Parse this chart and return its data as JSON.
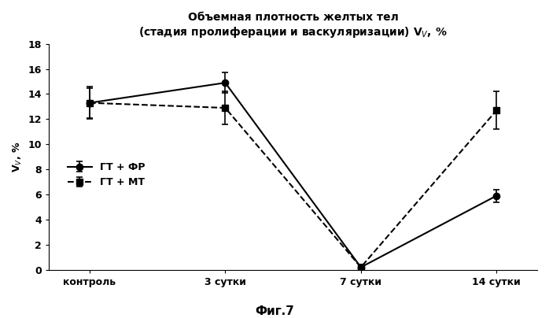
{
  "title_line1": "Объемная плотность желтых тел",
  "title_line2": "(стадия пролиферации и васкуляризации) V$_V$, %",
  "xlabel_categories": [
    "контроль",
    "3 сутки",
    "7 сутки",
    "14 сутки"
  ],
  "ylabel": "V$_V$, %",
  "figcaption": "Фиг.7",
  "series": [
    {
      "label": "ГТ + ФР",
      "values": [
        13.3,
        14.9,
        0.2,
        5.9
      ],
      "yerr": [
        1.3,
        0.8,
        0.2,
        0.5
      ],
      "color": "#000000",
      "linestyle": "-",
      "marker": "o",
      "markersize": 6,
      "linewidth": 1.5
    },
    {
      "label": "ГТ + МТ",
      "values": [
        13.3,
        12.9,
        0.2,
        12.7
      ],
      "yerr": [
        1.2,
        1.3,
        0.2,
        1.5
      ],
      "color": "#000000",
      "linestyle": "--",
      "marker": "s",
      "markersize": 6,
      "linewidth": 1.5
    }
  ],
  "ylim": [
    0,
    18
  ],
  "yticks": [
    0,
    2,
    4,
    6,
    8,
    10,
    12,
    14,
    16,
    18
  ],
  "background_color": "#ffffff",
  "title_fontsize": 10,
  "axis_fontsize": 9,
  "tick_fontsize": 9,
  "legend_fontsize": 9,
  "caption_fontsize": 11
}
